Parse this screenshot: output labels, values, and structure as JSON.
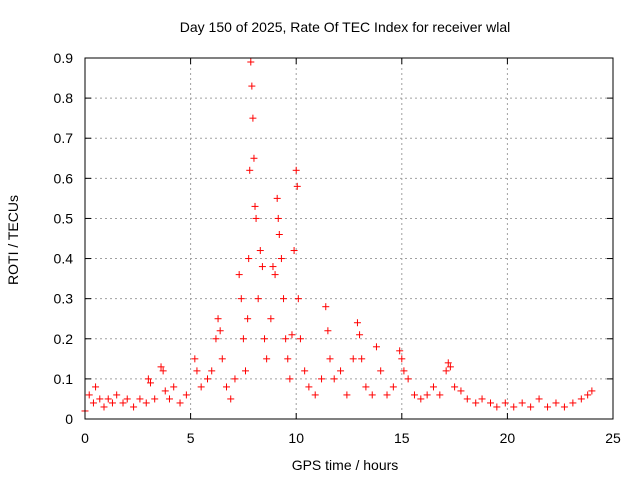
{
  "chart_data": {
    "type": "scatter",
    "title": "Day 150 of 2025, Rate Of TEC Index for receiver wlal",
    "xlabel": "GPS time / hours",
    "ylabel": "ROTI / TECUs",
    "xlim": [
      0,
      25
    ],
    "ylim": [
      0,
      0.9
    ],
    "xticks": [
      0,
      5,
      10,
      15,
      20,
      25
    ],
    "xtick_labels": [
      "0",
      "5",
      "10",
      "15",
      "20",
      "25"
    ],
    "yticks": [
      0,
      0.1,
      0.2,
      0.3,
      0.4,
      0.5,
      0.6,
      0.7,
      0.8,
      0.9
    ],
    "ytick_labels": [
      "0",
      "0.1",
      "0.2",
      "0.3",
      "0.4",
      "0.5",
      "0.6",
      "0.7",
      "0.8",
      "0.9"
    ],
    "grid": true,
    "marker": "+",
    "series_color": "#ff0000",
    "points": [
      [
        0.0,
        0.02
      ],
      [
        0.2,
        0.06
      ],
      [
        0.4,
        0.04
      ],
      [
        0.5,
        0.08
      ],
      [
        0.7,
        0.05
      ],
      [
        0.9,
        0.03
      ],
      [
        1.1,
        0.05
      ],
      [
        1.3,
        0.04
      ],
      [
        1.5,
        0.06
      ],
      [
        1.8,
        0.04
      ],
      [
        2.0,
        0.05
      ],
      [
        2.3,
        0.03
      ],
      [
        2.6,
        0.05
      ],
      [
        2.9,
        0.04
      ],
      [
        3.0,
        0.1
      ],
      [
        3.1,
        0.09
      ],
      [
        3.3,
        0.05
      ],
      [
        3.6,
        0.13
      ],
      [
        3.7,
        0.12
      ],
      [
        3.8,
        0.07
      ],
      [
        4.0,
        0.05
      ],
      [
        4.2,
        0.08
      ],
      [
        4.5,
        0.04
      ],
      [
        4.8,
        0.06
      ],
      [
        5.2,
        0.15
      ],
      [
        5.3,
        0.12
      ],
      [
        5.5,
        0.08
      ],
      [
        5.8,
        0.1
      ],
      [
        6.0,
        0.12
      ],
      [
        6.2,
        0.2
      ],
      [
        6.3,
        0.25
      ],
      [
        6.4,
        0.22
      ],
      [
        6.5,
        0.15
      ],
      [
        6.7,
        0.08
      ],
      [
        6.9,
        0.05
      ],
      [
        7.1,
        0.1
      ],
      [
        7.3,
        0.36
      ],
      [
        7.4,
        0.3
      ],
      [
        7.5,
        0.2
      ],
      [
        7.6,
        0.12
      ],
      [
        7.7,
        0.25
      ],
      [
        7.75,
        0.4
      ],
      [
        7.8,
        0.62
      ],
      [
        7.85,
        0.89
      ],
      [
        7.9,
        0.83
      ],
      [
        7.95,
        0.75
      ],
      [
        8.0,
        0.65
      ],
      [
        8.05,
        0.53
      ],
      [
        8.1,
        0.5
      ],
      [
        8.2,
        0.3
      ],
      [
        8.3,
        0.42
      ],
      [
        8.4,
        0.38
      ],
      [
        8.5,
        0.2
      ],
      [
        8.6,
        0.15
      ],
      [
        8.8,
        0.25
      ],
      [
        8.9,
        0.38
      ],
      [
        9.0,
        0.36
      ],
      [
        9.1,
        0.55
      ],
      [
        9.15,
        0.5
      ],
      [
        9.2,
        0.46
      ],
      [
        9.3,
        0.4
      ],
      [
        9.4,
        0.3
      ],
      [
        9.5,
        0.2
      ],
      [
        9.6,
        0.15
      ],
      [
        9.7,
        0.1
      ],
      [
        9.8,
        0.21
      ],
      [
        9.9,
        0.42
      ],
      [
        10.0,
        0.62
      ],
      [
        10.05,
        0.58
      ],
      [
        10.1,
        0.3
      ],
      [
        10.2,
        0.2
      ],
      [
        10.4,
        0.12
      ],
      [
        10.6,
        0.08
      ],
      [
        10.9,
        0.06
      ],
      [
        11.2,
        0.1
      ],
      [
        11.4,
        0.28
      ],
      [
        11.5,
        0.22
      ],
      [
        11.6,
        0.15
      ],
      [
        11.8,
        0.1
      ],
      [
        12.1,
        0.12
      ],
      [
        12.4,
        0.06
      ],
      [
        12.7,
        0.15
      ],
      [
        12.9,
        0.24
      ],
      [
        13.0,
        0.21
      ],
      [
        13.1,
        0.15
      ],
      [
        13.3,
        0.08
      ],
      [
        13.6,
        0.06
      ],
      [
        13.8,
        0.18
      ],
      [
        14.0,
        0.12
      ],
      [
        14.3,
        0.06
      ],
      [
        14.6,
        0.08
      ],
      [
        14.9,
        0.17
      ],
      [
        15.0,
        0.15
      ],
      [
        15.1,
        0.12
      ],
      [
        15.3,
        0.1
      ],
      [
        15.6,
        0.06
      ],
      [
        15.9,
        0.05
      ],
      [
        16.2,
        0.06
      ],
      [
        16.5,
        0.08
      ],
      [
        16.8,
        0.06
      ],
      [
        17.1,
        0.12
      ],
      [
        17.2,
        0.14
      ],
      [
        17.3,
        0.13
      ],
      [
        17.5,
        0.08
      ],
      [
        17.8,
        0.07
      ],
      [
        18.1,
        0.05
      ],
      [
        18.5,
        0.04
      ],
      [
        18.8,
        0.05
      ],
      [
        19.2,
        0.04
      ],
      [
        19.5,
        0.03
      ],
      [
        19.9,
        0.04
      ],
      [
        20.3,
        0.03
      ],
      [
        20.7,
        0.04
      ],
      [
        21.1,
        0.03
      ],
      [
        21.5,
        0.05
      ],
      [
        21.9,
        0.03
      ],
      [
        22.3,
        0.04
      ],
      [
        22.7,
        0.03
      ],
      [
        23.1,
        0.04
      ],
      [
        23.5,
        0.05
      ],
      [
        23.8,
        0.06
      ],
      [
        24.0,
        0.07
      ]
    ]
  }
}
